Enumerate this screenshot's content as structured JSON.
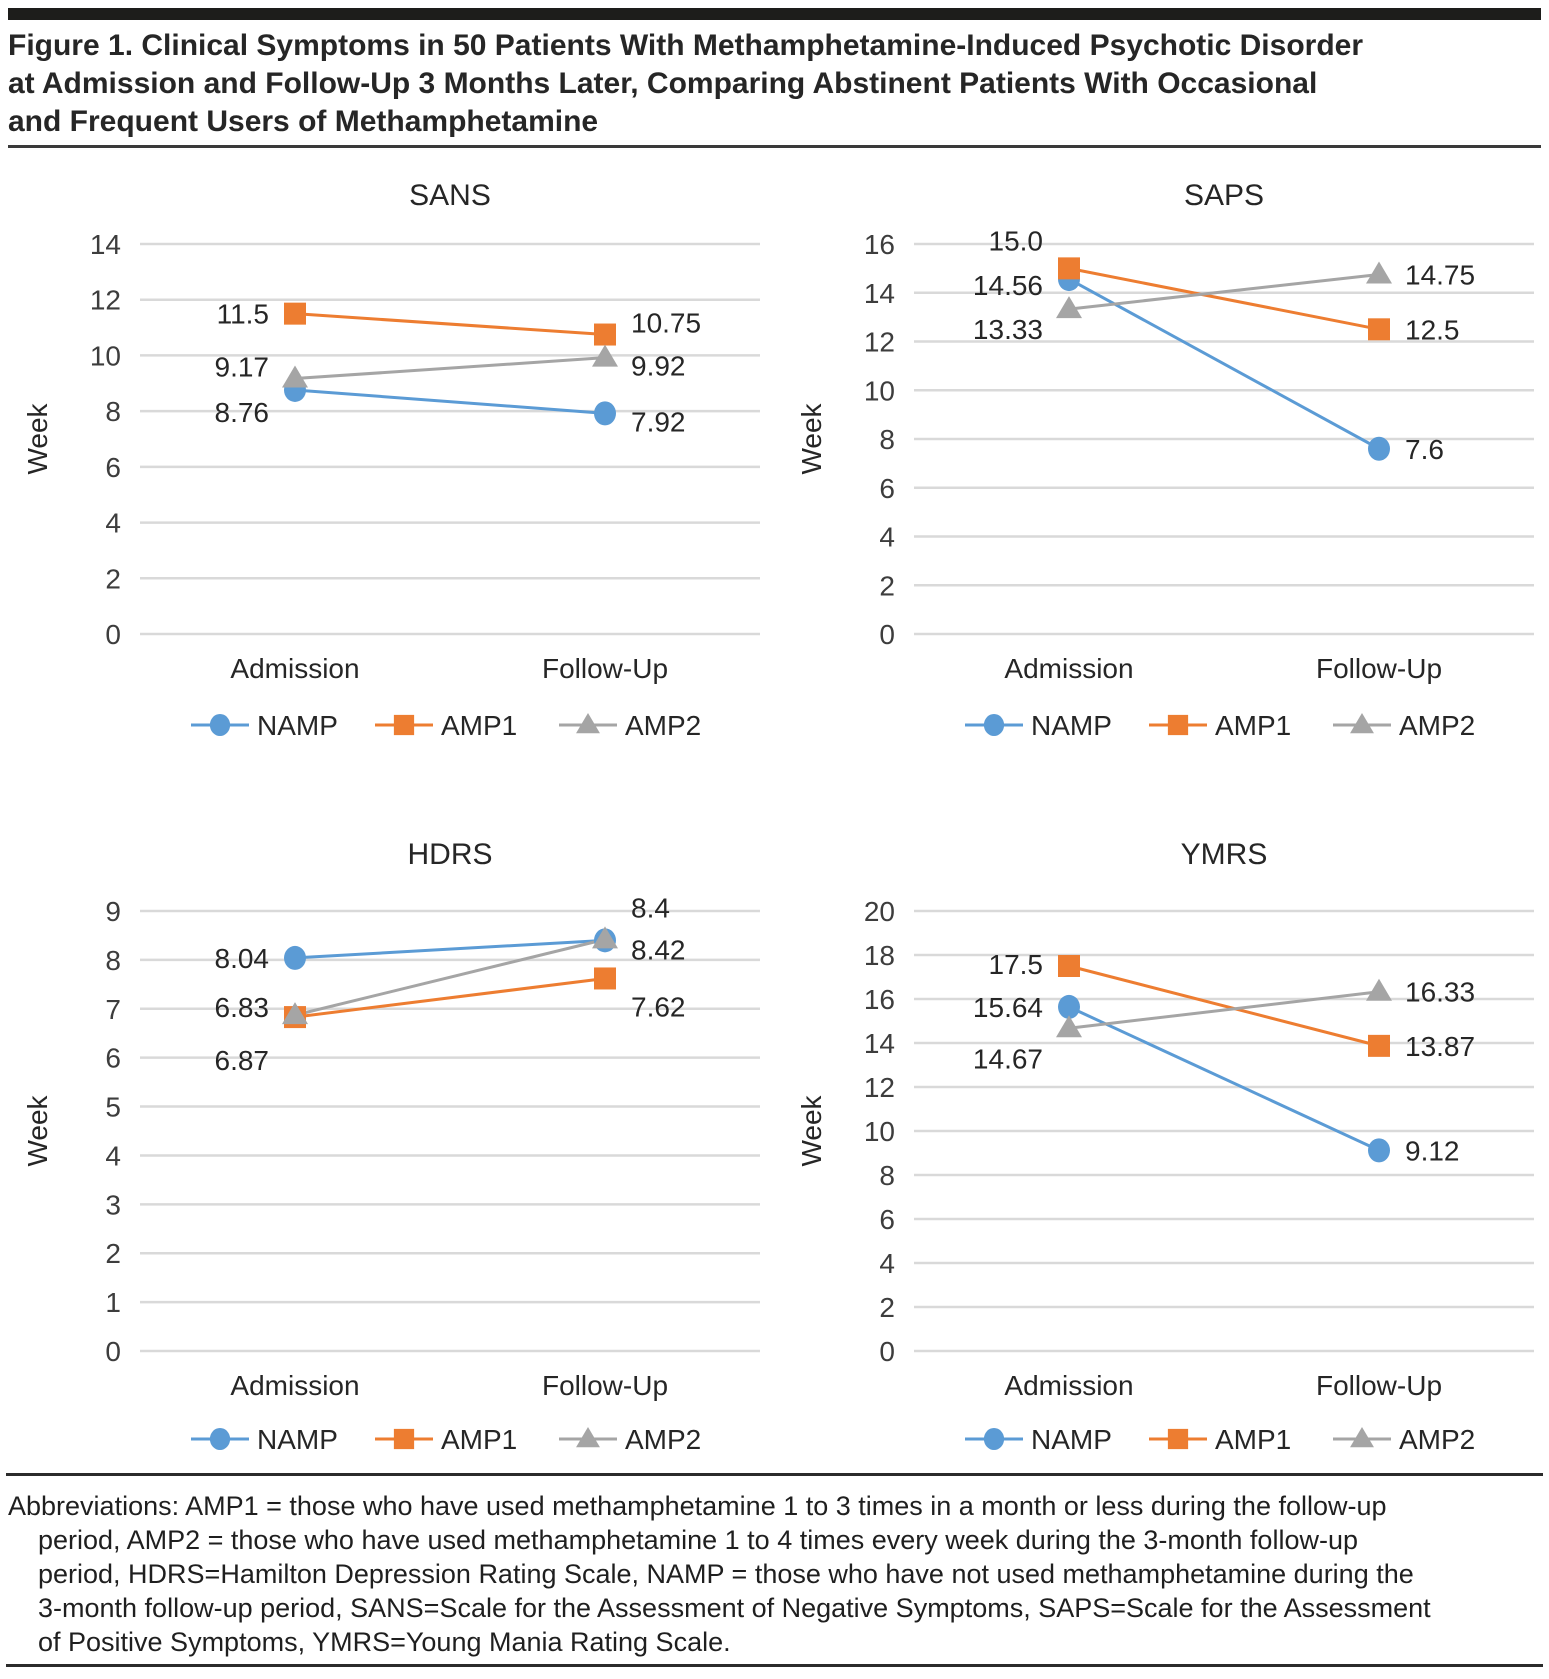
{
  "figure": {
    "title_lines": [
      "Figure 1. Clinical Symptoms in 50 Patients With Methamphetamine-Induced Psychotic Disorder",
      "at Admission and Follow-Up 3 Months Later, Comparing Abstinent Patients With Occasional",
      "and Frequent Users of Methamphetamine"
    ],
    "abbreviations_lines": [
      "Abbreviations: AMP1 = those who have used methamphetamine 1 to 3 times in a month or less during the follow-up",
      "period, AMP2 = those who have used methamphetamine 1 to 4 times every week during the 3-month follow-up",
      "period, HDRS=Hamilton Depression Rating Scale, NAMP = those who have not used methamphetamine during the",
      "3-month follow-up period, SANS=Scale for the Assessment of Negative Symptoms, SAPS=Scale for the Assessment",
      "of Positive Symptoms, YMRS=Young Mania Rating Scale."
    ]
  },
  "palette": {
    "gridline": "#D9D9D9",
    "tick_text": "#3d3d3d",
    "chart_text": "#262626"
  },
  "chart_data": [
    {
      "type": "line",
      "title": "SANS",
      "ylabel": "Week",
      "categories": [
        "Admission",
        "Follow-Up"
      ],
      "ymin": 0,
      "ymax": 14,
      "ystep": 2,
      "grid": true,
      "legend_position": "bottom",
      "series": [
        {
          "name": "NAMP",
          "color": "#5B9BD5",
          "marker": "circle",
          "values": [
            8.76,
            7.92
          ],
          "labels": [
            "8.76",
            "7.92"
          ],
          "label_dy": [
            22,
            8
          ]
        },
        {
          "name": "AMP1",
          "color": "#ED7D31",
          "marker": "square",
          "values": [
            11.5,
            10.75
          ],
          "labels": [
            "11.5",
            "10.75"
          ],
          "label_dy": [
            0,
            -12
          ]
        },
        {
          "name": "AMP2",
          "color": "#A5A5A5",
          "marker": "triangle",
          "values": [
            9.17,
            9.92
          ],
          "labels": [
            "9.17",
            "9.92"
          ],
          "label_dy": [
            -12,
            8
          ]
        }
      ]
    },
    {
      "type": "line",
      "title": "SAPS",
      "ylabel": "Week",
      "categories": [
        "Admission",
        "Follow-Up"
      ],
      "ymin": 0,
      "ymax": 16,
      "ystep": 2,
      "grid": true,
      "legend_position": "bottom",
      "series": [
        {
          "name": "NAMP",
          "color": "#5B9BD5",
          "marker": "circle",
          "values": [
            14.56,
            7.6
          ],
          "labels": [
            "14.56",
            "7.6"
          ],
          "label_dy": [
            6,
            0
          ]
        },
        {
          "name": "AMP1",
          "color": "#ED7D31",
          "marker": "square",
          "values": [
            15.0,
            12.5
          ],
          "labels": [
            "15.0",
            "12.5"
          ],
          "label_dy": [
            -28,
            0
          ]
        },
        {
          "name": "AMP2",
          "color": "#A5A5A5",
          "marker": "triangle",
          "values": [
            13.33,
            14.75
          ],
          "labels": [
            "13.33",
            "14.75"
          ],
          "label_dy": [
            20,
            0
          ]
        }
      ]
    },
    {
      "type": "line",
      "title": "HDRS",
      "ylabel": "Week",
      "categories": [
        "Admission",
        "Follow-Up"
      ],
      "ymin": 0,
      "ymax": 9,
      "ystep": 1,
      "grid": true,
      "legend_position": "bottom",
      "series": [
        {
          "name": "NAMP",
          "color": "#5B9BD5",
          "marker": "circle",
          "values": [
            8.04,
            8.4
          ],
          "labels": [
            "8.04",
            "8.4"
          ],
          "label_dy": [
            0,
            -33
          ]
        },
        {
          "name": "AMP1",
          "color": "#ED7D31",
          "marker": "square",
          "values": [
            6.83,
            7.62
          ],
          "labels": [
            "6.83",
            "7.62"
          ],
          "label_dy": [
            -10,
            28
          ]
        },
        {
          "name": "AMP2",
          "color": "#A5A5A5",
          "marker": "triangle",
          "values": [
            6.87,
            8.42
          ],
          "labels": [
            "6.87",
            "8.42"
          ],
          "label_dy": [
            45,
            10
          ]
        }
      ]
    },
    {
      "type": "line",
      "title": "YMRS",
      "ylabel": "Week",
      "categories": [
        "Admission",
        "Follow-Up"
      ],
      "ymin": 0,
      "ymax": 20,
      "ystep": 2,
      "grid": true,
      "legend_position": "bottom",
      "series": [
        {
          "name": "NAMP",
          "color": "#5B9BD5",
          "marker": "circle",
          "values": [
            15.64,
            9.12
          ],
          "labels": [
            "15.64",
            "9.12"
          ],
          "label_dy": [
            0,
            0
          ]
        },
        {
          "name": "AMP1",
          "color": "#ED7D31",
          "marker": "square",
          "values": [
            17.5,
            13.87
          ],
          "labels": [
            "17.5",
            "13.87"
          ],
          "label_dy": [
            -2,
            0
          ]
        },
        {
          "name": "AMP2",
          "color": "#A5A5A5",
          "marker": "triangle",
          "values": [
            14.67,
            16.33
          ],
          "labels": [
            "14.67",
            "16.33"
          ],
          "label_dy": [
            30,
            0
          ]
        }
      ]
    }
  ]
}
